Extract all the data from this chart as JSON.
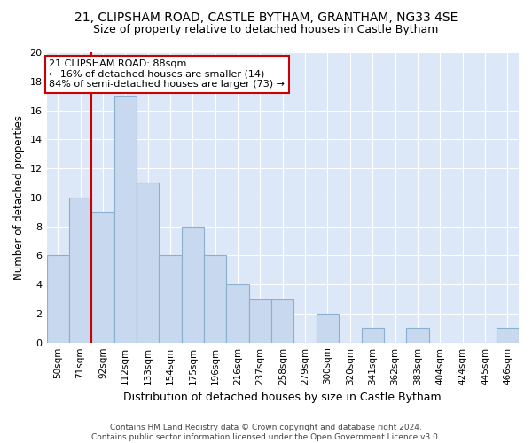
{
  "title": "21, CLIPSHAM ROAD, CASTLE BYTHAM, GRANTHAM, NG33 4SE",
  "subtitle": "Size of property relative to detached houses in Castle Bytham",
  "xlabel": "Distribution of detached houses by size in Castle Bytham",
  "ylabel": "Number of detached properties",
  "categories": [
    "50sqm",
    "71sqm",
    "92sqm",
    "112sqm",
    "133sqm",
    "154sqm",
    "175sqm",
    "196sqm",
    "216sqm",
    "237sqm",
    "258sqm",
    "279sqm",
    "300sqm",
    "320sqm",
    "341sqm",
    "362sqm",
    "383sqm",
    "404sqm",
    "424sqm",
    "445sqm",
    "466sqm"
  ],
  "values": [
    6,
    10,
    9,
    17,
    11,
    6,
    8,
    6,
    4,
    3,
    3,
    0,
    2,
    0,
    1,
    0,
    1,
    0,
    0,
    0,
    1
  ],
  "bar_color": "#c8d8ee",
  "bar_edge_color": "#8ab0d0",
  "redline_index": 2,
  "bg_color": "#ffffff",
  "plot_bg_color": "#dce8f8",
  "grid_color": "#ffffff",
  "ylim": [
    0,
    20
  ],
  "yticks": [
    0,
    2,
    4,
    6,
    8,
    10,
    12,
    14,
    16,
    18,
    20
  ],
  "annotation_line1": "21 CLIPSHAM ROAD: 88sqm",
  "annotation_line2": "← 16% of detached houses are smaller (14)",
  "annotation_line3": "84% of semi-detached houses are larger (73) →",
  "footnote": "Contains HM Land Registry data © Crown copyright and database right 2024.\nContains public sector information licensed under the Open Government Licence v3.0.",
  "title_fontsize": 10,
  "subtitle_fontsize": 9,
  "xlabel_fontsize": 9,
  "ylabel_fontsize": 8.5,
  "annot_fontsize": 8
}
